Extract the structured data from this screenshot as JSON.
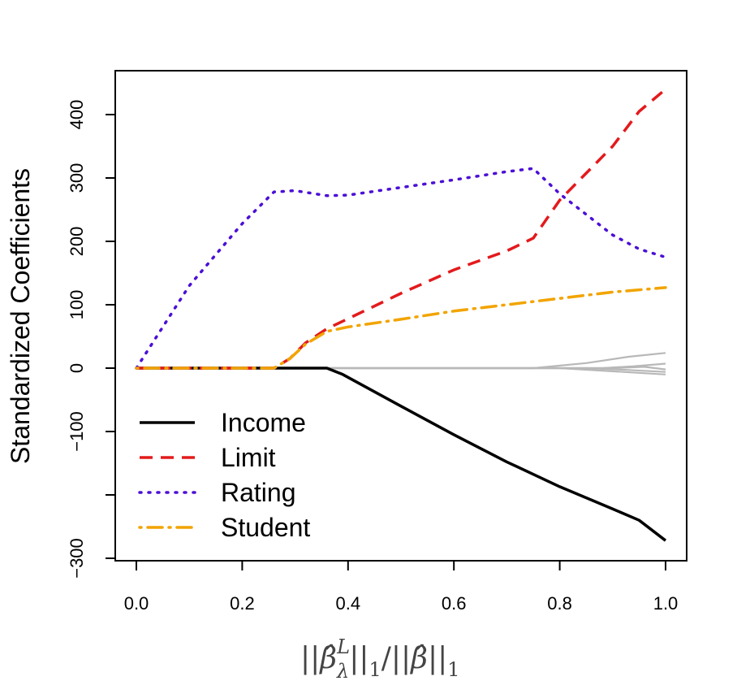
{
  "chart_data": {
    "type": "line",
    "title": "",
    "xlabel": "||β̂_λ^L||₁/||β̂||₁",
    "xlabel_parts": {
      "bar1": "||",
      "beta1": "β̂",
      "sup": "L",
      "sub1": "λ",
      "bar2": "||",
      "one1": "1",
      "slash": "/||",
      "beta2": "β̂",
      "bar3": "||",
      "one2": "1"
    },
    "ylabel": "Standardized Coefficients",
    "xlim": [
      0.0,
      1.0
    ],
    "ylim": [
      -300,
      400
    ],
    "x_ticks": [
      "0.0",
      "0.2",
      "0.4",
      "0.6",
      "0.8",
      "1.0"
    ],
    "x_tick_values": [
      0.0,
      0.2,
      0.4,
      0.6,
      0.8,
      1.0
    ],
    "y_ticks": [
      "−300",
      "",
      "−100",
      "0",
      "100",
      "200",
      "300",
      "400"
    ],
    "y_tick_values": [
      -300,
      -200,
      -100,
      0,
      100,
      200,
      300,
      400
    ],
    "grid": false,
    "legend_position": "bottom-left",
    "series": [
      {
        "name": "Income",
        "color": "#000000",
        "style": "solid",
        "points": [
          [
            0.0,
            0
          ],
          [
            0.36,
            0
          ],
          [
            0.39,
            -10
          ],
          [
            0.5,
            -60
          ],
          [
            0.6,
            -105
          ],
          [
            0.7,
            -148
          ],
          [
            0.8,
            -187
          ],
          [
            0.9,
            -222
          ],
          [
            0.95,
            -240
          ],
          [
            1.0,
            -272
          ]
        ]
      },
      {
        "name": "Limit",
        "color": "#e31a1c",
        "style": "dashed",
        "points": [
          [
            0.0,
            0
          ],
          [
            0.26,
            0
          ],
          [
            0.29,
            15
          ],
          [
            0.32,
            40
          ],
          [
            0.36,
            62
          ],
          [
            0.4,
            78
          ],
          [
            0.5,
            118
          ],
          [
            0.6,
            155
          ],
          [
            0.7,
            185
          ],
          [
            0.75,
            205
          ],
          [
            0.8,
            265
          ],
          [
            0.9,
            350
          ],
          [
            0.95,
            405
          ],
          [
            1.0,
            440
          ]
        ]
      },
      {
        "name": "Rating",
        "color": "#4b0fd6",
        "style": "dotted",
        "points": [
          [
            0.0,
            0
          ],
          [
            0.05,
            65
          ],
          [
            0.1,
            130
          ],
          [
            0.2,
            228
          ],
          [
            0.26,
            278
          ],
          [
            0.3,
            280
          ],
          [
            0.36,
            272
          ],
          [
            0.4,
            273
          ],
          [
            0.5,
            285
          ],
          [
            0.6,
            297
          ],
          [
            0.7,
            310
          ],
          [
            0.75,
            315
          ],
          [
            0.8,
            275
          ],
          [
            0.9,
            210
          ],
          [
            0.95,
            188
          ],
          [
            1.0,
            175
          ]
        ]
      },
      {
        "name": "Student",
        "color": "#f2a400",
        "style": "dashdot",
        "points": [
          [
            0.0,
            0
          ],
          [
            0.26,
            0
          ],
          [
            0.29,
            15
          ],
          [
            0.32,
            38
          ],
          [
            0.36,
            58
          ],
          [
            0.4,
            65
          ],
          [
            0.5,
            77
          ],
          [
            0.6,
            90
          ],
          [
            0.7,
            100
          ],
          [
            0.8,
            110
          ],
          [
            0.9,
            120
          ],
          [
            1.0,
            127
          ]
        ]
      },
      {
        "color": "#b8b8b8",
        "style": "solid",
        "points": [
          [
            0.0,
            0
          ],
          [
            0.75,
            0
          ],
          [
            0.85,
            8
          ],
          [
            0.93,
            18
          ],
          [
            1.0,
            24
          ]
        ]
      },
      {
        "color": "#b8b8b8",
        "style": "solid",
        "points": [
          [
            0.0,
            0
          ],
          [
            0.88,
            0
          ],
          [
            0.94,
            3
          ],
          [
            1.0,
            7
          ]
        ]
      },
      {
        "color": "#b8b8b8",
        "style": "solid",
        "points": [
          [
            0.0,
            0
          ],
          [
            0.85,
            0
          ],
          [
            0.93,
            -3
          ],
          [
            1.0,
            -6
          ]
        ]
      },
      {
        "color": "#b8b8b8",
        "style": "solid",
        "points": [
          [
            0.0,
            0
          ],
          [
            0.8,
            0
          ],
          [
            0.9,
            -5
          ],
          [
            1.0,
            -10
          ]
        ]
      },
      {
        "color": "#b8b8b8",
        "style": "solid",
        "points": [
          [
            0.0,
            0
          ],
          [
            0.9,
            0
          ],
          [
            0.96,
            2
          ],
          [
            1.0,
            -2
          ]
        ]
      }
    ]
  }
}
